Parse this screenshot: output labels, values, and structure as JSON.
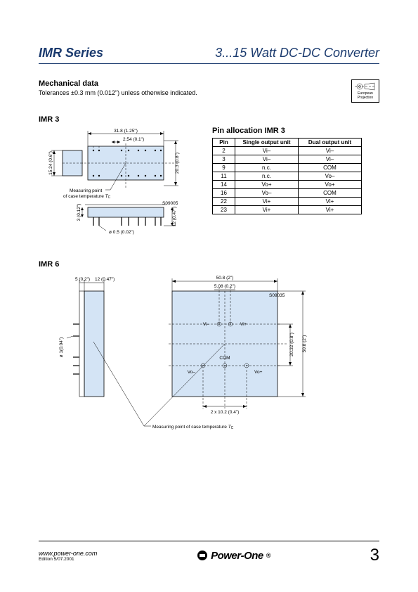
{
  "header": {
    "series": "IMR Series",
    "product": "3...15 Watt DC-DC Converter"
  },
  "mechanical": {
    "heading": "Mechanical data",
    "tolerance": "Tolerances ±0.3 mm (0.012\") unless otherwise indicated."
  },
  "projection": {
    "line1": "European",
    "line2": "Projection"
  },
  "imr3": {
    "label": "IMR 3",
    "dims": {
      "width_top": "31.8 (1.25\")",
      "pitch": "2.54 (0.1\")",
      "height_left": "15.24 (0.6\")",
      "height_right": "20.3 (0.8\")",
      "side_h": "3 (0.12\")",
      "side_pin": "12 (0.47\")",
      "pin_dia": "ø 0.5 (0.02\")",
      "note": "Measuring point\nof case temperature",
      "note_sym": "T",
      "note_sub": "C",
      "code": "S09005"
    }
  },
  "pin_table": {
    "heading": "Pin allocation IMR 3",
    "cols": [
      "Pin",
      "Single output unit",
      "Dual output unit"
    ],
    "rows": [
      [
        "2",
        "Vi–",
        "Vi–"
      ],
      [
        "3",
        "Vi–",
        "Vi–"
      ],
      [
        "9",
        "n.c.",
        "COM"
      ],
      [
        "11",
        "n.c.",
        "Vo–"
      ],
      [
        "14",
        "Vo+",
        "Vo+"
      ],
      [
        "16",
        "Vo–",
        "COM"
      ],
      [
        "22",
        "Vi+",
        "Vi+"
      ],
      [
        "23",
        "Vi+",
        "Vi+"
      ]
    ]
  },
  "imr6": {
    "label": "IMR 6",
    "dims": {
      "side_gap": "5 (0.2\")",
      "side_depth": "12 (0.47\")",
      "top_w": "50.8 (2\")",
      "inner_w": "5.08 (0.2\")",
      "right_h1": "20.32 (0.8\")",
      "right_h2": "50.8 (2\")",
      "bottom_w": "2 x 10.2 (0.4\")",
      "pin_dia": "ø 1(0.04\")",
      "note": "Measuring point of case temperature",
      "note_sym": "T",
      "note_sub": "C",
      "code": "S09035",
      "labels": {
        "vi_minus": "Vi–",
        "vi_plus": "Vi+",
        "com": "COM",
        "vo_minus": "Vo–",
        "vo_plus": "Vo+"
      }
    }
  },
  "footer": {
    "url": "www.power-one.com",
    "edition": "Edition 5/07.2001",
    "logo": "Power-One",
    "page": "3"
  },
  "colors": {
    "brand": "#1a3a6e",
    "block": "#d4e4f5"
  }
}
